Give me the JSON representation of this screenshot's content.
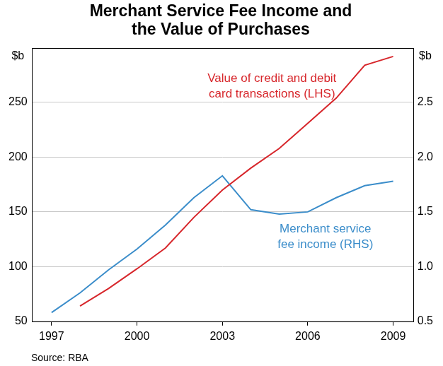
{
  "chart_data": {
    "type": "line",
    "title": [
      "Merchant Service Fee Income and",
      "the Value of Purchases"
    ],
    "ylabel": "$b",
    "y2label": "$b",
    "source": "Source: RBA",
    "x": [
      1997,
      1998,
      1999,
      2000,
      2001,
      2002,
      2003,
      2004,
      2005,
      2006,
      2007,
      2008,
      2009
    ],
    "xlim": [
      1996.3,
      2009.7
    ],
    "xticks": [
      1997,
      2000,
      2003,
      2006,
      2009
    ],
    "ylim": [
      50,
      300
    ],
    "yticks": [
      50,
      100,
      150,
      200,
      250
    ],
    "y2lim": [
      0.5,
      3.0
    ],
    "y2ticks": [
      0.5,
      {
        "value": 1,
        "label": "1.0"
      },
      1.5,
      {
        "value": 2,
        "label": "2.0"
      },
      2.5
    ],
    "grid": true,
    "series": [
      {
        "name": "Value of credit and debit\ncard transactions (LHS)",
        "color": "#d7262b",
        "values": [
          null,
          64,
          80,
          98,
          117,
          145,
          170,
          190,
          208,
          231,
          254,
          284,
          292
        ]
      },
      {
        "name": "Merchant service\nfee income (RHS)",
        "color": "#3b8dca",
        "axis": "y2",
        "values": [
          0.58,
          0.76,
          0.97,
          1.16,
          1.38,
          1.63,
          1.83,
          1.52,
          1.48,
          1.5,
          1.63,
          1.74,
          1.78
        ]
      }
    ]
  }
}
